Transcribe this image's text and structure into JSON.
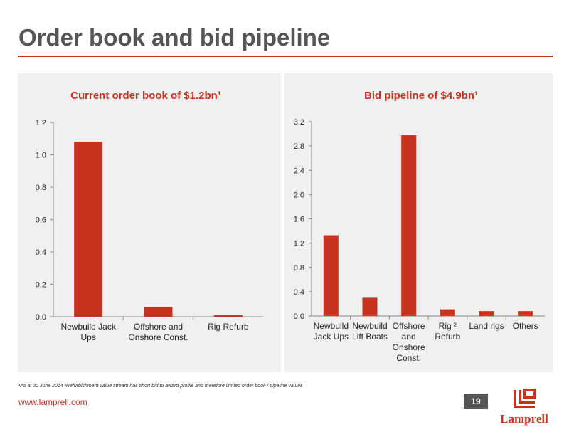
{
  "page": {
    "title": "Order book and bid pipeline",
    "footnote": "¹As at 30 June 2014 ²Refurbishment value stream has short bid to award profile and therefore limited order book / pipeline values",
    "website": "www.lamprell.com",
    "page_number": "19",
    "logo_text": "Lamprell"
  },
  "colors": {
    "accent": "#c8331f",
    "bar": "#c8331f",
    "panel_bg": "#f0f0f0",
    "title_text": "#555555"
  },
  "chart_data": [
    {
      "type": "bar",
      "title": "Current order book of $1.2bn¹",
      "categories": [
        [
          "Newbuild Jack",
          "Ups"
        ],
        [
          "Offshore and",
          "Onshore Const."
        ],
        [
          "Rig Refurb"
        ]
      ],
      "values": [
        1.08,
        0.06,
        0.01
      ],
      "ylim": [
        0,
        1.2
      ],
      "yticks": [
        "0.0",
        "0.2",
        "0.4",
        "0.6",
        "0.8",
        "1.0",
        "1.2"
      ],
      "xlabel": "",
      "ylabel": "",
      "grid": false,
      "legend": "none"
    },
    {
      "type": "bar",
      "title": "Bid pipeline of $4.9bn¹",
      "categories": [
        [
          "Newbuild",
          "Jack Ups"
        ],
        [
          "Newbuild",
          "Lift Boats"
        ],
        [
          "Offshore",
          "and",
          "Onshore",
          "Const."
        ],
        [
          "Rig ²",
          "Refurb"
        ],
        [
          "Land rigs"
        ],
        [
          "Others"
        ]
      ],
      "values": [
        1.33,
        0.3,
        2.98,
        0.11,
        0.08,
        0.08
      ],
      "ylim": [
        0,
        3.2
      ],
      "yticks": [
        "0.0",
        "0.4",
        "0.8",
        "1.2",
        "1.6",
        "2.0",
        "2.4",
        "2.8",
        "3.2"
      ],
      "xlabel": "",
      "ylabel": "",
      "grid": false,
      "legend": "none"
    }
  ]
}
